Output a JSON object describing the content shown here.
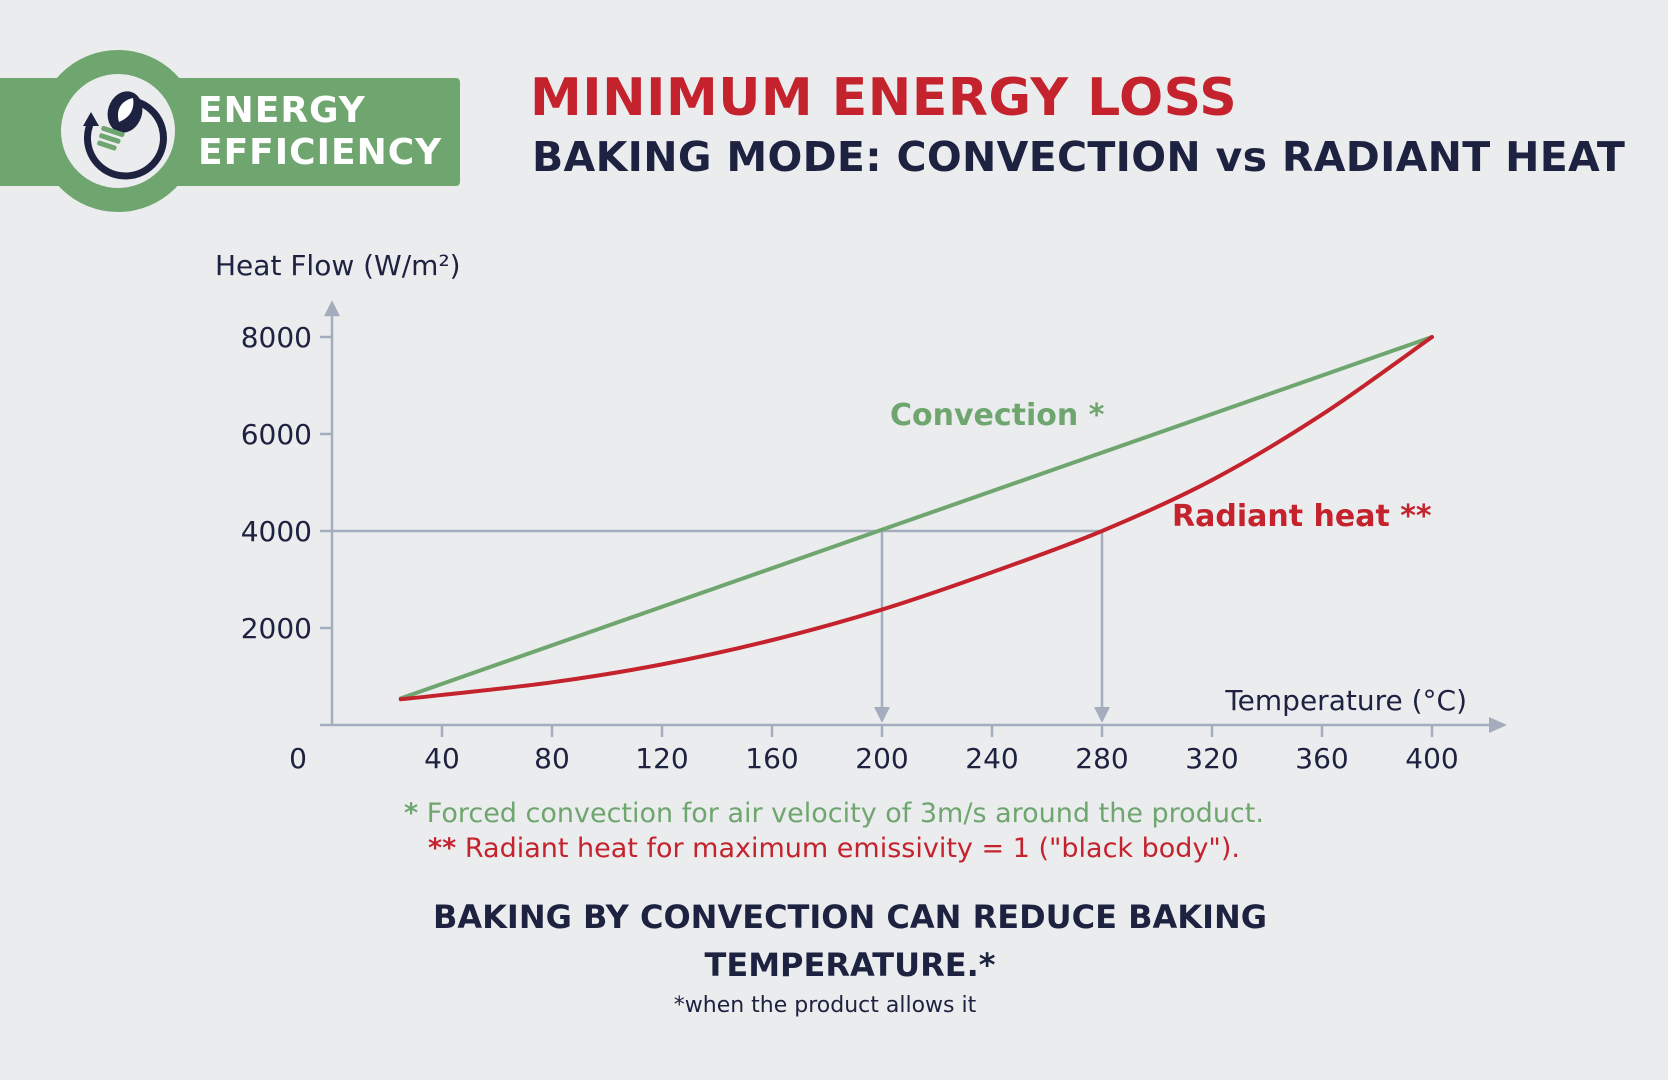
{
  "badge": {
    "line1": "ENERGY",
    "line2": "EFFICIENCY",
    "icon": "lightbulb-leaf-cycle-icon",
    "color": "#6fa66f"
  },
  "title": "MINIMUM ENERGY LOSS",
  "subtitle": "BAKING MODE: CONVECTION vs RADIANT HEAT",
  "chart_data": {
    "type": "line",
    "ylabel": "Heat Flow (W/m²)",
    "xlabel": "Temperature (°C)",
    "x_ticks": [
      0,
      40,
      80,
      120,
      160,
      200,
      240,
      280,
      320,
      360,
      400
    ],
    "y_ticks": [
      2000,
      4000,
      6000,
      8000
    ],
    "xlim": [
      0,
      420
    ],
    "ylim": [
      0,
      8800
    ],
    "grid": false,
    "series": [
      {
        "name": "Convection *",
        "color": "#6fa66f",
        "x": [
          25,
          400
        ],
        "y": [
          550,
          8000
        ]
      },
      {
        "name": "Radiant heat **",
        "color": "#c4232e",
        "x": [
          25,
          40,
          80,
          120,
          160,
          200,
          240,
          280,
          320,
          360,
          400
        ],
        "y": [
          530,
          620,
          880,
          1250,
          1750,
          2380,
          3150,
          4000,
          5050,
          6400,
          8000
        ]
      }
    ],
    "reference": {
      "y": 4000,
      "x_points": [
        200,
        280
      ]
    }
  },
  "footnotes": {
    "convection_mark": "*",
    "convection_text": "Forced convection for air velocity of 3m/s around the product.",
    "radiant_mark": "**",
    "radiant_text": "Radiant heat for maximum emissivity = 1 (\"black body\")."
  },
  "conclusion": {
    "line1": "BAKING BY CONVECTION CAN REDUCE BAKING",
    "line2": "TEMPERATURE.*",
    "note": "*when the product allows it"
  },
  "colors": {
    "axis": "#a3adbd",
    "text": "#1d2240",
    "red": "#c4232e",
    "green": "#6fa66f",
    "background": "#ebecee"
  }
}
